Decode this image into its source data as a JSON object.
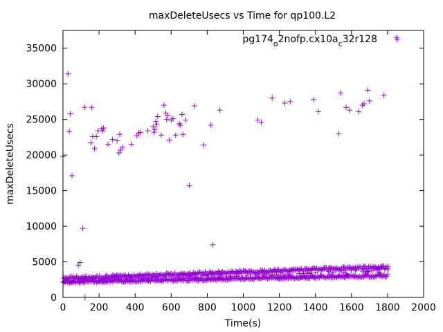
{
  "chart_data": {
    "type": "scatter",
    "title": "maxDeleteUsecs vs Time for qp100.L2",
    "xlabel": "Time(s)",
    "ylabel": "maxDeleteUsecs",
    "xlim": [
      0,
      2000
    ],
    "ylim": [
      0,
      37500
    ],
    "xticks": [
      0,
      200,
      400,
      600,
      800,
      1000,
      1200,
      1400,
      1600,
      1800,
      2000
    ],
    "yticks": [
      0,
      5000,
      10000,
      15000,
      20000,
      25000,
      30000,
      35000
    ],
    "grid": false,
    "legend_position": "top-right",
    "color": "#9400d3",
    "marker": "plus",
    "series": [
      {
        "name_parts": [
          "pg174",
          "o",
          "2nofp.cx10a",
          "c",
          "32r128"
        ],
        "outliers": [
          [
            0,
            19800
          ],
          [
            28,
            31400
          ],
          [
            35,
            23300
          ],
          [
            40,
            25800
          ],
          [
            50,
            17100
          ],
          [
            85,
            4500
          ],
          [
            95,
            4900
          ],
          [
            110,
            9700
          ],
          [
            120,
            26700
          ],
          [
            122,
            0
          ],
          [
            155,
            21700
          ],
          [
            160,
            26700
          ],
          [
            165,
            22600
          ],
          [
            175,
            20900
          ],
          [
            185,
            22600
          ],
          [
            195,
            23400
          ],
          [
            215,
            23700
          ],
          [
            220,
            23400
          ],
          [
            225,
            23800
          ],
          [
            250,
            21500
          ],
          [
            275,
            22200
          ],
          [
            300,
            22000
          ],
          [
            310,
            20300
          ],
          [
            315,
            22900
          ],
          [
            320,
            20700
          ],
          [
            330,
            21100
          ],
          [
            380,
            21500
          ],
          [
            410,
            22700
          ],
          [
            420,
            23100
          ],
          [
            430,
            23200
          ],
          [
            470,
            23400
          ],
          [
            500,
            24000
          ],
          [
            505,
            23200
          ],
          [
            510,
            23600
          ],
          [
            515,
            24700
          ],
          [
            520,
            24300
          ],
          [
            525,
            25400
          ],
          [
            545,
            22800
          ],
          [
            560,
            27000
          ],
          [
            570,
            25900
          ],
          [
            575,
            25000
          ],
          [
            580,
            25600
          ],
          [
            590,
            22100
          ],
          [
            600,
            24900
          ],
          [
            610,
            25100
          ],
          [
            625,
            22800
          ],
          [
            645,
            24400
          ],
          [
            650,
            24200
          ],
          [
            660,
            25700
          ],
          [
            665,
            22900
          ],
          [
            680,
            24900
          ],
          [
            700,
            15700
          ],
          [
            730,
            26900
          ],
          [
            780,
            21400
          ],
          [
            820,
            24200
          ],
          [
            830,
            7400
          ],
          [
            870,
            26300
          ],
          [
            1080,
            24900
          ],
          [
            1100,
            24600
          ],
          [
            1160,
            28000
          ],
          [
            1230,
            27300
          ],
          [
            1260,
            27500
          ],
          [
            1390,
            27800
          ],
          [
            1415,
            26100
          ],
          [
            1530,
            23000
          ],
          [
            1540,
            28700
          ],
          [
            1570,
            26700
          ],
          [
            1590,
            26300
          ],
          [
            1640,
            26100
          ],
          [
            1660,
            27000
          ],
          [
            1670,
            27200
          ],
          [
            1690,
            29100
          ],
          [
            1700,
            27600
          ],
          [
            1780,
            28400
          ],
          [
            1850,
            36500
          ]
        ],
        "band": {
          "x_range": [
            0,
            1800
          ],
          "x_step": 6,
          "lower": {
            "start": 2150,
            "end": 3050
          },
          "upper": {
            "start": 2700,
            "end": 4300
          }
        }
      }
    ]
  }
}
